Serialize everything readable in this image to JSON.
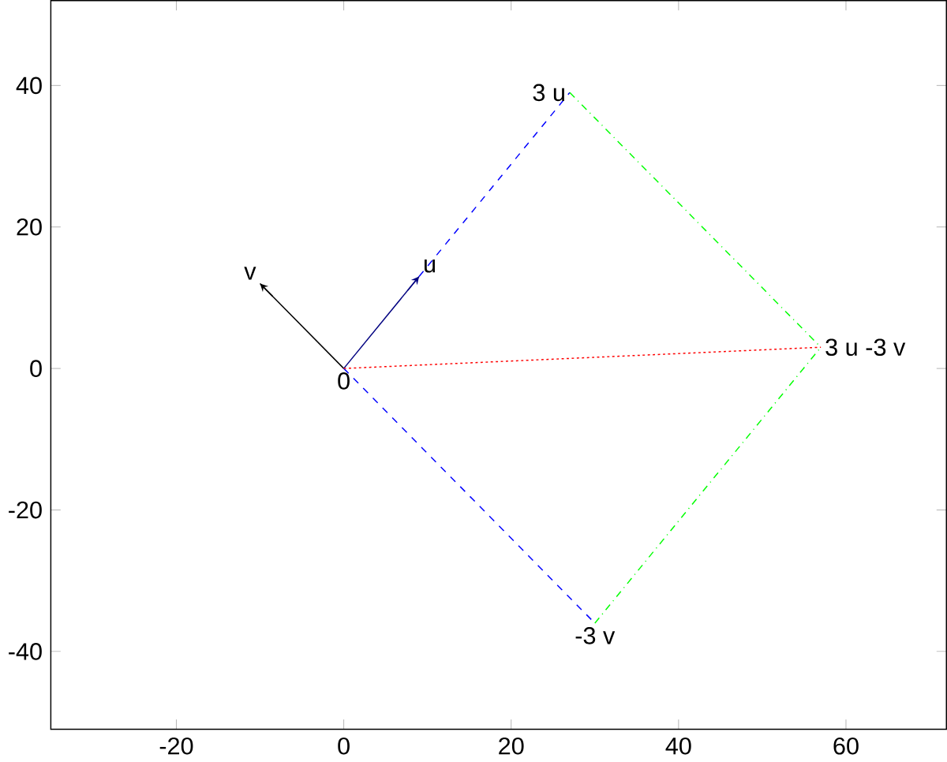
{
  "chart_data": {
    "type": "line",
    "xlim": [
      -35,
      72
    ],
    "ylim": [
      -51,
      52
    ],
    "xticks": [
      -20,
      0,
      20,
      40,
      60
    ],
    "yticks": [
      -40,
      -20,
      0,
      20,
      40
    ],
    "marker": "none",
    "series": [
      {
        "color": "#000000",
        "x": [
          0,
          -10
        ],
        "values": [
          0,
          12
        ],
        "line_style": "solid"
      },
      {
        "color": "#000080",
        "x": [
          0,
          9
        ],
        "values": [
          0,
          13
        ],
        "line_style": "solid"
      },
      {
        "color": "#0000ff",
        "x": [
          9,
          27
        ],
        "values": [
          13,
          39
        ],
        "line_style": "dashed"
      },
      {
        "color": "#0000ff",
        "x": [
          0,
          30
        ],
        "values": [
          0,
          -36
        ],
        "line_style": "dashed"
      },
      {
        "color": "#00ff00",
        "x": [
          27,
          57
        ],
        "values": [
          39,
          3
        ],
        "line_style": "dashdot"
      },
      {
        "color": "#00ff00",
        "x": [
          30,
          57
        ],
        "values": [
          -36,
          3
        ],
        "line_style": "dashdot"
      },
      {
        "color": "#ff0000",
        "x": [
          0,
          57
        ],
        "values": [
          0,
          3
        ],
        "line_style": "dotted"
      }
    ],
    "annotations": [
      {
        "text": "v",
        "x": -10,
        "y": 12
      },
      {
        "text": "u",
        "x": 9,
        "y": 13
      },
      {
        "text": "0",
        "x": 0,
        "y": 0
      },
      {
        "text": "3 u",
        "x": 27,
        "y": 39
      },
      {
        "text": "-3 v",
        "x": 30,
        "y": -36
      },
      {
        "text": "3 u -3 v",
        "x": 57,
        "y": 3
      }
    ]
  }
}
